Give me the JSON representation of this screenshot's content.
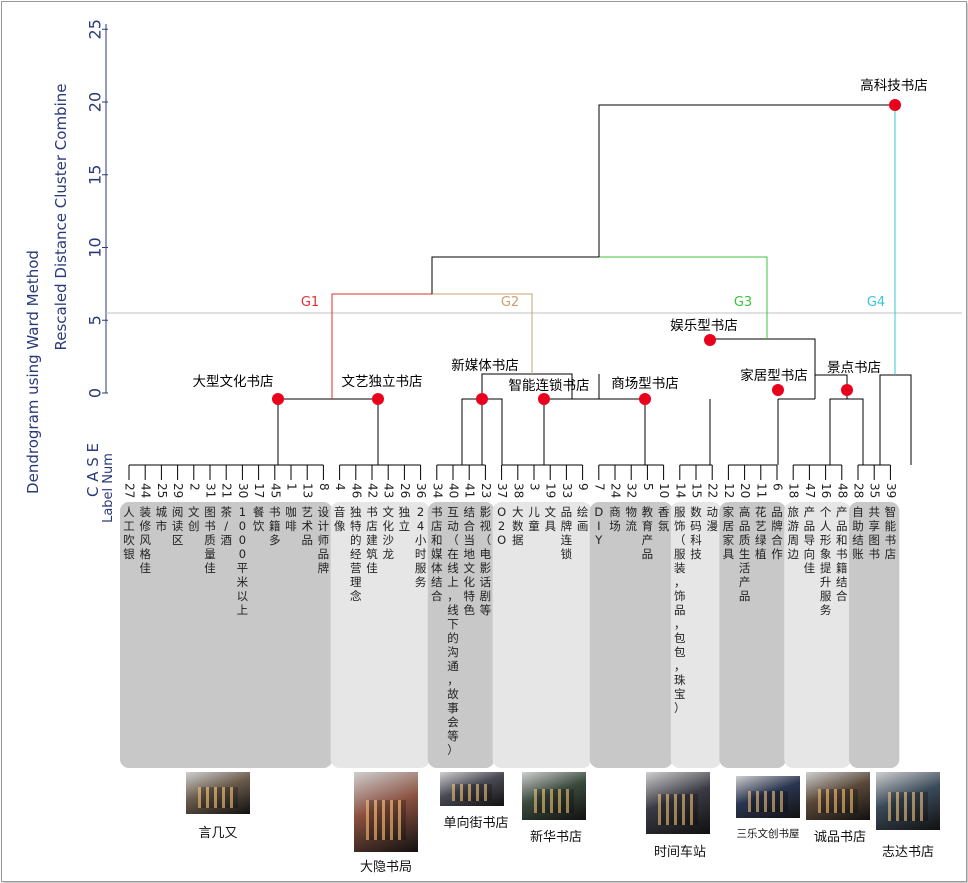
{
  "axis": {
    "title_line1": "Dendrogram using Ward Method",
    "title_line2": "Rescaled Distance Cluster Combine",
    "ticks": [
      "0",
      "5",
      "10",
      "15",
      "20",
      "25"
    ],
    "case_label": "C A S E",
    "label_num": "Label  Num"
  },
  "threshold": 5.5,
  "groups": [
    {
      "label": "G1",
      "color": "#e03030"
    },
    {
      "label": "G2",
      "color": "#c8a070"
    },
    {
      "label": "G3",
      "color": "#3cc43c"
    },
    {
      "label": "G4",
      "color": "#38c8d8"
    }
  ],
  "cluster_names": [
    "大型文化书店",
    "文艺独立书店",
    "新媒体书店",
    "智能连锁书店",
    "商场型书店",
    "娱乐型书店",
    "家居型书店",
    "景点书店",
    "高科技书店"
  ],
  "leaves": [
    {
      "num": "27",
      "text": "人工吹银"
    },
    {
      "num": "44",
      "text": "装修风格佳"
    },
    {
      "num": "25",
      "text": "城市"
    },
    {
      "num": "29",
      "text": "阅读区"
    },
    {
      "num": "2",
      "text": "文创"
    },
    {
      "num": "31",
      "text": "图书质量佳"
    },
    {
      "num": "21",
      "text": "茶/酒"
    },
    {
      "num": "30",
      "text": "1000平米以上"
    },
    {
      "num": "17",
      "text": "餐饮"
    },
    {
      "num": "45",
      "text": "书籍多"
    },
    {
      "num": "1",
      "text": "咖啡"
    },
    {
      "num": "13",
      "text": "艺术品"
    },
    {
      "num": "8",
      "text": "设计师品牌"
    },
    {
      "num": "4",
      "text": "音像"
    },
    {
      "num": "46",
      "text": "独特的经营理念"
    },
    {
      "num": "42",
      "text": "书店建筑佳"
    },
    {
      "num": "43",
      "text": "文化沙龙"
    },
    {
      "num": "26",
      "text": "独立"
    },
    {
      "num": "36",
      "text": "24小时服务"
    },
    {
      "num": "34",
      "text": "书店和媒体结合"
    },
    {
      "num": "40",
      "text": "互动（在线上，线下的沟通，故事会等）"
    },
    {
      "num": "41",
      "text": "结合当地文化特色"
    },
    {
      "num": "23",
      "text": "影视（电影话剧等"
    },
    {
      "num": "37",
      "text": "O2O"
    },
    {
      "num": "38",
      "text": "大数据"
    },
    {
      "num": "3",
      "text": "儿童"
    },
    {
      "num": "19",
      "text": "文具"
    },
    {
      "num": "33",
      "text": "品牌连锁"
    },
    {
      "num": "9",
      "text": "绘画"
    },
    {
      "num": "7",
      "text": "DIY"
    },
    {
      "num": "24",
      "text": "商场"
    },
    {
      "num": "32",
      "text": "物流"
    },
    {
      "num": "5",
      "text": "教育产品"
    },
    {
      "num": "10",
      "text": "香氛"
    },
    {
      "num": "14",
      "text": "服饰（服装，饰品，包包，珠宝）"
    },
    {
      "num": "15",
      "text": "数码科技"
    },
    {
      "num": "22",
      "text": "动漫"
    },
    {
      "num": "12",
      "text": "家居家具"
    },
    {
      "num": "20",
      "text": "高品质生活产品"
    },
    {
      "num": "11",
      "text": "花艺绿植"
    },
    {
      "num": "6",
      "text": "品牌合作"
    },
    {
      "num": "18",
      "text": "旅游周边"
    },
    {
      "num": "47",
      "text": "产品导向佳"
    },
    {
      "num": "16",
      "text": "个人形象提升服务"
    },
    {
      "num": "48",
      "text": "产品和书籍结合"
    },
    {
      "num": "28",
      "text": "自助结账"
    },
    {
      "num": "35",
      "text": "共享图书"
    },
    {
      "num": "39",
      "text": "智能书店"
    }
  ],
  "photos": [
    {
      "caption": "言几又",
      "color": "#6a5a4a"
    },
    {
      "caption": "大隐书局",
      "color": "#8a5040"
    },
    {
      "caption": "单向街书店",
      "color": "#4a4a55"
    },
    {
      "caption": "新华书店",
      "color": "#3a4a3c"
    },
    {
      "caption": "时间车站",
      "color": "#3a3a44"
    },
    {
      "caption": "三乐文创书屋",
      "color": "#2a3550"
    },
    {
      "caption": "诚品书店",
      "color": "#5a4838"
    },
    {
      "caption": "志达书店",
      "color": "#3a4a5a"
    }
  ]
}
